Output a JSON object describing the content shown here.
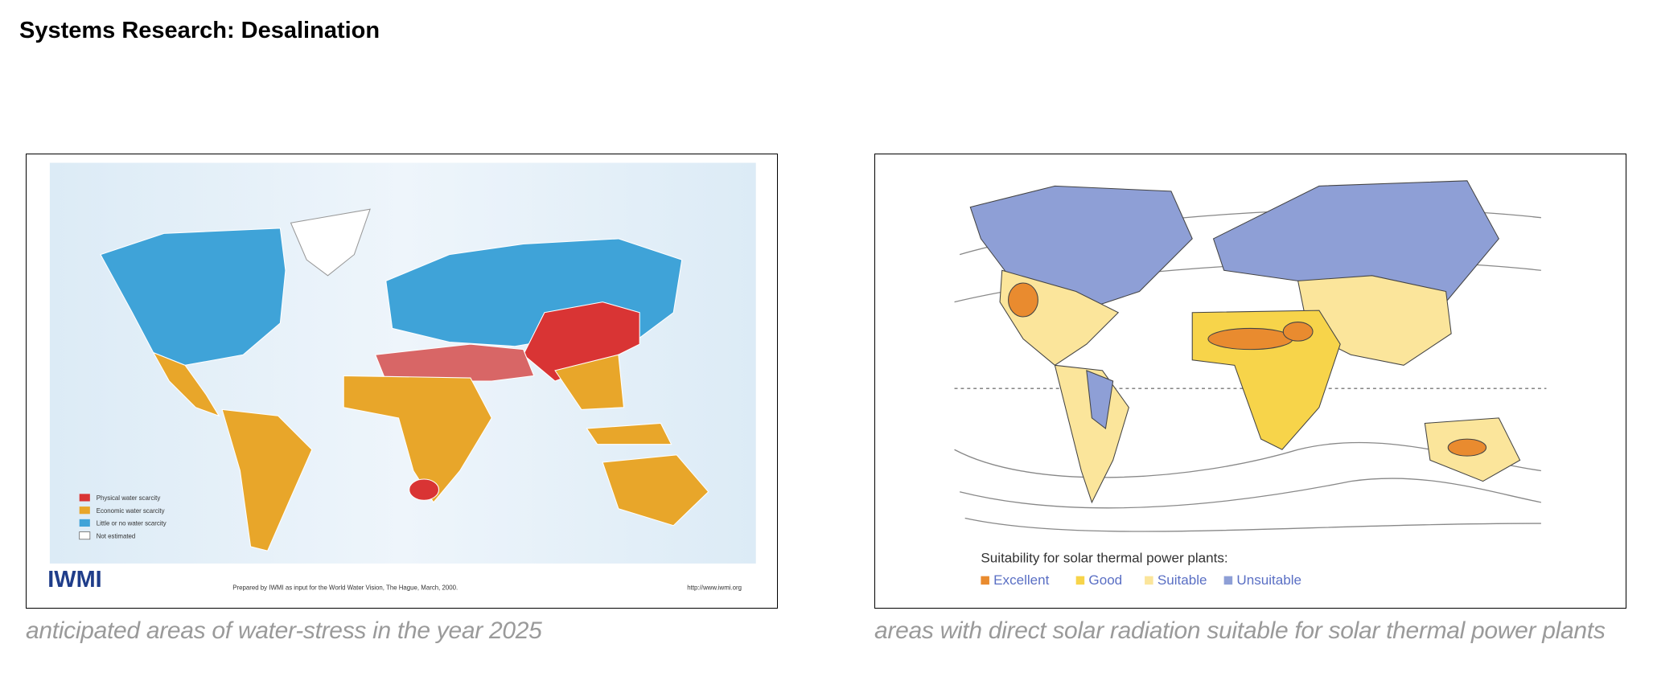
{
  "header": {
    "title": "Systems Research: Desalination"
  },
  "figures": [
    {
      "caption": "anticipated areas of water-stress in the year 2025",
      "legend": [
        "Physical water scarcity",
        "Economic water scarcity",
        "Little or no water scarcity",
        "Not estimated"
      ],
      "logo": "IWMI",
      "footer": "Prepared by IWMI as input for the World Water Vision, The Hague, March, 2000.",
      "url": "http://www.iwmi.org"
    },
    {
      "caption": "areas with direct solar radiation suitable for solar thermal power plants",
      "legend_title": "Suitability for solar thermal power plants:",
      "legend": [
        "Excellent",
        "Good",
        "Suitable",
        "Unsuitable"
      ]
    }
  ]
}
